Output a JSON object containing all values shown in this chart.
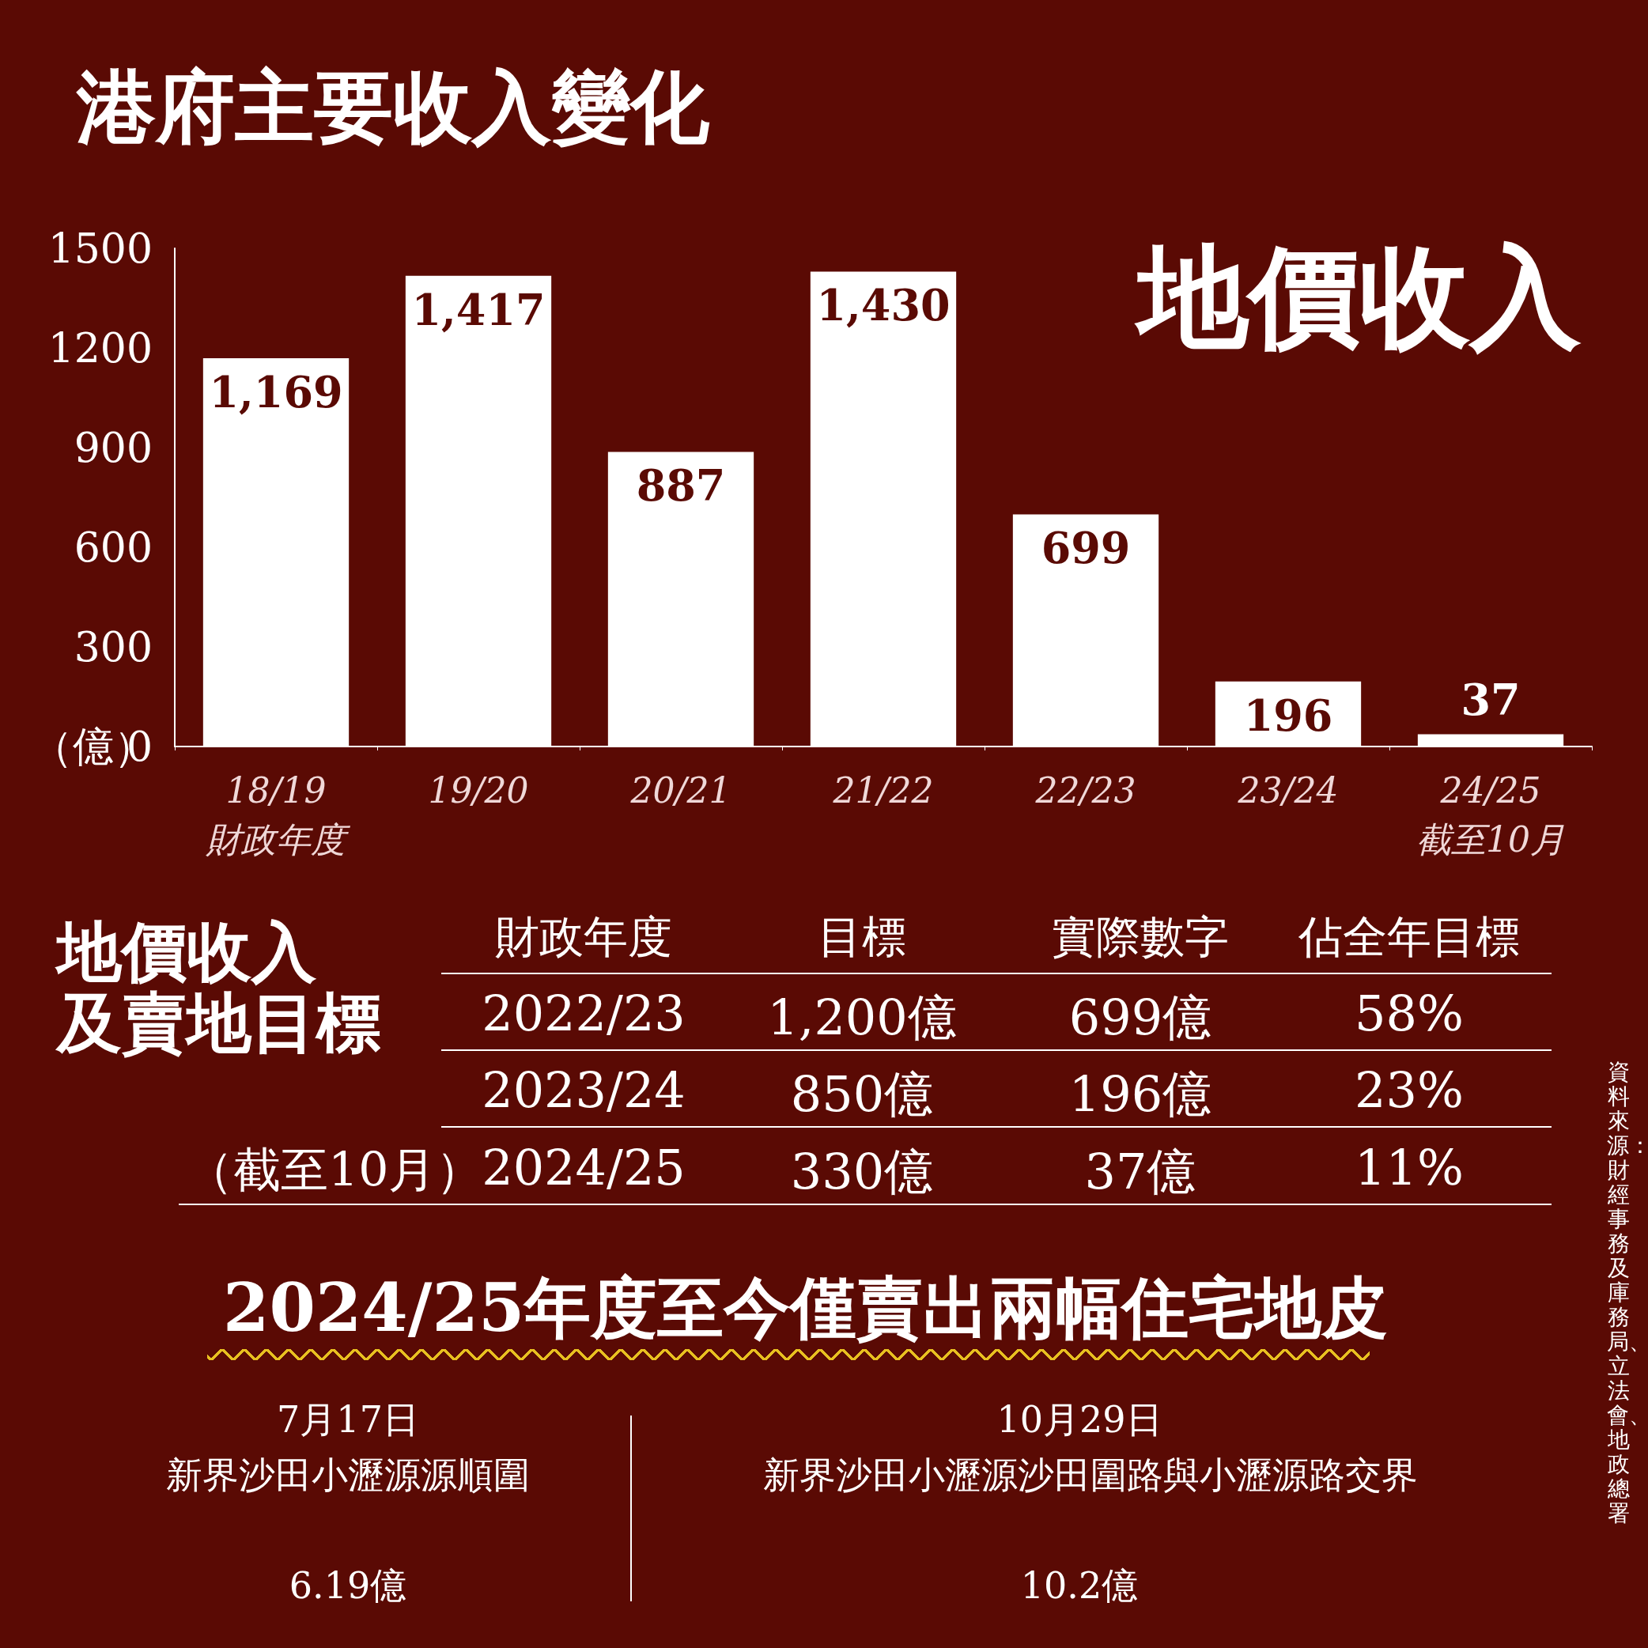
{
  "chart_data": {
    "type": "bar",
    "title": "港府主要收入變化",
    "subtitle": "地價收入",
    "ylabel": "（億）",
    "categories": [
      "18/19\n財政年度",
      "19/20",
      "20/21",
      "21/22",
      "22/23",
      "23/24",
      "24/25\n截至10月"
    ],
    "values": [
      1169,
      1417,
      887,
      1430,
      699,
      196,
      37
    ],
    "color": "#ffffff",
    "value_labels": [
      "1,169",
      "1,417",
      "887",
      "1,430",
      "699",
      "196",
      "37"
    ],
    "ylim": [
      0,
      1500
    ],
    "yticks": [
      0,
      300,
      600,
      900,
      1200,
      1500
    ],
    "grid": false,
    "annotations": [
      "地價收入",
      "及賣地目標",
      "財政年度",
      "目標",
      "實際數字",
      "佔全年目標",
      "2022/23",
      "1,200億",
      "699億",
      "58%",
      "2023/24",
      "850億",
      "196億",
      "23%",
      "（截至10月）",
      "2024/25",
      "330億",
      "37億",
      "11%",
      "2024/25年度至今僅賣出兩幅住宅地皮",
      "7月17日",
      "新界沙田小瀝源源順圍",
      "6.19億",
      "10月29日",
      "新界沙田小瀝源沙田圍路與小瀝源路交界",
      "10.2億",
      "資料來源：財經事務及庫務局、立法會、地政總署"
    ]
  }
}
